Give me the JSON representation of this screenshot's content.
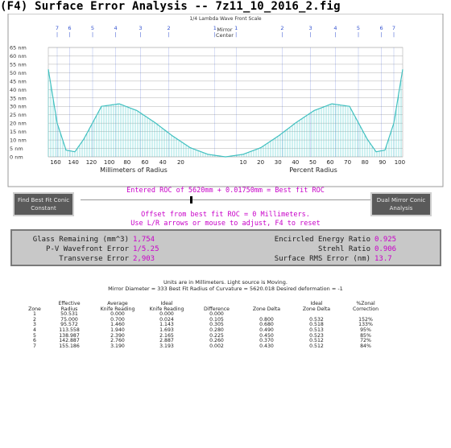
{
  "window": {
    "title": "(F4) Surface Error Analysis -- 7z11_10_2016_2.fig"
  },
  "graph": {
    "caption": "1/4 Lambda Wave Front Scale",
    "mirror_label": "Mirror",
    "center_label": "Center",
    "y_unit": "nm",
    "y_ticks": [
      65,
      60,
      55,
      50,
      45,
      40,
      35,
      30,
      25,
      20,
      15,
      10,
      5,
      0
    ],
    "top_markers": [
      "7",
      "6",
      "5",
      "4",
      "3",
      "2",
      "1",
      "1",
      "2",
      "3",
      "4",
      "5",
      "6",
      "7"
    ],
    "x_left_ticks": [
      "160",
      "140",
      "120",
      "100",
      "80",
      "60",
      "40",
      "20"
    ],
    "x_right_ticks": [
      "10",
      "20",
      "30",
      "40",
      "50",
      "60",
      "70",
      "80",
      "90",
      "100"
    ],
    "x_left_label": "Millimeters of Radius",
    "x_right_label": "Percent Radius",
    "colors": {
      "curve": "#40c0c0",
      "fill": "#40c8c8",
      "grid": "#b0b0b0",
      "marker": "#3050d0"
    }
  },
  "chart_data": {
    "type": "area",
    "title": "1/4 Lambda Wave Front Scale",
    "xlabel": "Millimeters of Radius / Percent Radius",
    "ylabel": "nm",
    "ylim": [
      0,
      65
    ],
    "x_percent_radius": [
      0,
      10,
      20,
      30,
      40,
      50,
      60,
      70,
      80,
      85,
      90,
      95,
      100
    ],
    "y_right_half": [
      0,
      1.5,
      5.5,
      12.5,
      20.5,
      27.5,
      31.5,
      30,
      10.5,
      3,
      4,
      20,
      52
    ],
    "grid": true
  },
  "controls": {
    "left_button": {
      "line1": "Find Best Fit Conic",
      "line2": "Constant"
    },
    "right_button": {
      "line1": "Dual Mirror Conic",
      "line2": "Analysis"
    },
    "roc_line": "Entered ROC of 5620mm + 0.01750mm = Best fit ROC",
    "offset_line": "Offset from best fit ROC = 0 Millimeters.",
    "hint_line": "Use L/R arrows or mouse to adjust, F4 to reset"
  },
  "stats": {
    "glass_remaining_label": "Glass Remaining (mm^3)",
    "glass_remaining_value": "1,754",
    "pv_error_label": "P-V Wavefront Error",
    "pv_error_value": "1/5.25",
    "transverse_label": "Transverse Error",
    "transverse_value": "2,903",
    "encircled_label": "Encircled Energy Ratio",
    "encircled_value": "0.925",
    "strehl_label": "Strehl Ratio",
    "strehl_value": "0.906",
    "rms_label": "Surface RMS Error (nm)",
    "rms_value": "13.7"
  },
  "report": {
    "line1": "Units are in Millimeters. Light source is Moving.",
    "line2": "Mirror Diameter = 333    Best Fit Radius of Curvature = 5620.018    Desired deformation = -1",
    "headers1": [
      "",
      "Effective",
      "Average",
      "Ideal",
      "",
      "",
      "Ideal",
      "%Zonal"
    ],
    "headers2": [
      "Zone",
      "Radius",
      "Knife Reading",
      "Knife Reading",
      "Difference",
      "Zone Delta",
      "Zone Delta",
      "Correction"
    ],
    "rows": [
      [
        "1",
        "50.531",
        "0.000",
        "0.000",
        "0.000",
        "",
        "",
        ""
      ],
      [
        "2",
        "75.000",
        "0.700",
        "0.024",
        "0.105",
        "0.800",
        "0.532",
        "152%"
      ],
      [
        "3",
        "95.572",
        "1.460",
        "1.143",
        "0.305",
        "0.680",
        "0.518",
        "133%"
      ],
      [
        "4",
        "113.558",
        "1.940",
        "1.693",
        "0.280",
        "0.490",
        "0.513",
        "95%"
      ],
      [
        "5",
        "138.987",
        "2.390",
        "2.165",
        "0.225",
        "0.450",
        "0.523",
        "85%"
      ],
      [
        "6",
        "142.887",
        "2.760",
        "2.887",
        "0.260",
        "0.370",
        "0.512",
        "72%"
      ],
      [
        "7",
        "155.186",
        "3.190",
        "3.193",
        "0.002",
        "0.430",
        "0.512",
        "84%"
      ]
    ]
  }
}
